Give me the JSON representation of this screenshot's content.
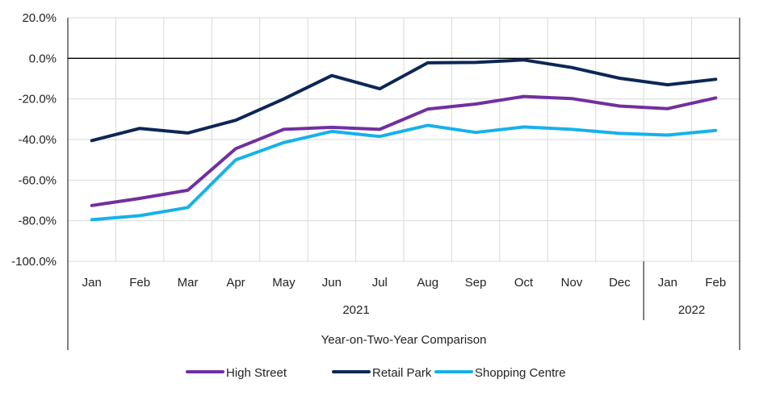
{
  "chart_data": {
    "type": "line",
    "categories": [
      "Jan",
      "Feb",
      "Mar",
      "Apr",
      "May",
      "Jun",
      "Jul",
      "Aug",
      "Sep",
      "Oct",
      "Nov",
      "Dec",
      "Jan",
      "Feb"
    ],
    "year_groups": [
      {
        "label": "2021",
        "start": 0,
        "end": 11
      },
      {
        "label": "2022",
        "start": 12,
        "end": 13
      }
    ],
    "xlabel": "Year-on-Two-Year Comparison",
    "ylabel": "",
    "ylim": [
      -100,
      20
    ],
    "yticks": [
      20,
      0,
      -20,
      -40,
      -60,
      -80,
      -100
    ],
    "ytick_labels": [
      "20.0%",
      "0.0%",
      "-20.0%",
      "-40.0%",
      "-60.0%",
      "-80.0%",
      "-100.0%"
    ],
    "grid": true,
    "legend_position": "bottom",
    "series": [
      {
        "name": "High Street",
        "color": "#7030a0",
        "values": [
          -72.5,
          -69,
          -65,
          -44.5,
          -35,
          -34,
          -35,
          -25,
          -22.5,
          -18.8,
          -19.8,
          -23.5,
          -24.8,
          -19.5
        ]
      },
      {
        "name": "Retail Park",
        "color": "#0c2756",
        "values": [
          -40.5,
          -34.5,
          -36.8,
          -30.5,
          -20,
          -8.5,
          -15,
          -2.2,
          -2,
          -0.8,
          -4.5,
          -9.8,
          -13,
          -10.3
        ]
      },
      {
        "name": "Shopping Centre",
        "color": "#17b1ea",
        "values": [
          -79.5,
          -77.5,
          -73.5,
          -50,
          -41.5,
          -36,
          -38.5,
          -33,
          -36.5,
          -33.8,
          -35,
          -37,
          -37.8,
          -35.5
        ]
      }
    ]
  }
}
